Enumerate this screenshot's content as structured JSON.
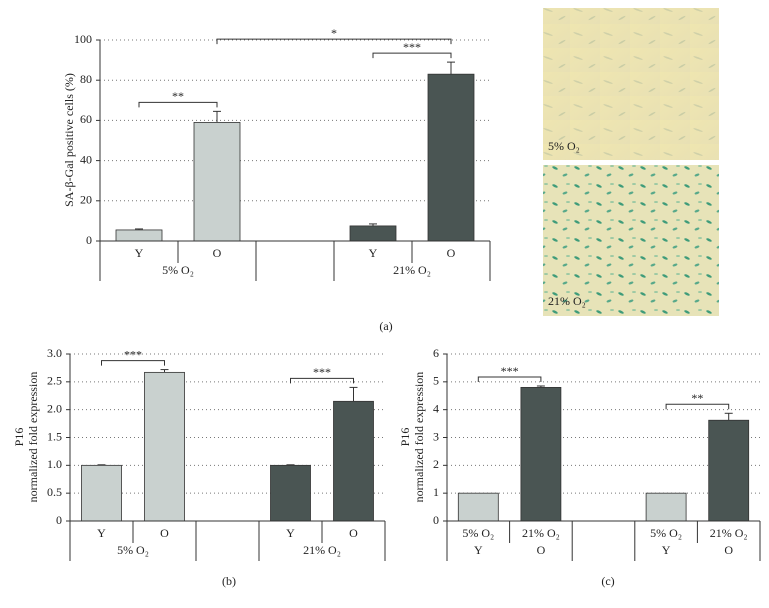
{
  "chart_data": [
    {
      "type": "bar",
      "caption": "(a)",
      "ylabel": [
        "SA-β-Gal positive cells (%)"
      ],
      "categories": [
        "Y",
        "O",
        "Y",
        "O"
      ],
      "groups": [
        "5% O₂",
        "21% O₂"
      ],
      "values": [
        5.5,
        59,
        7.5,
        83
      ],
      "errors": [
        0.5,
        5.5,
        1,
        6
      ],
      "colors": [
        "#c9d1cf",
        "#c9d1cf",
        "#4a5553",
        "#4a5553"
      ],
      "ylim": [
        0,
        100
      ],
      "yticks": [
        0,
        20,
        40,
        60,
        80,
        100
      ],
      "grid": true,
      "annotations": [
        {
          "label": "**",
          "from": 0,
          "to": 1
        },
        {
          "label": "*",
          "from": 1,
          "to": 3
        },
        {
          "label": "***",
          "from": 2,
          "to": 3
        }
      ]
    },
    {
      "type": "bar",
      "caption": "(b)",
      "ylabel": [
        "P16",
        "normalized fold expression"
      ],
      "categories": [
        "Y",
        "O",
        "Y",
        "O"
      ],
      "groups": [
        "5% O₂",
        "21% O₂"
      ],
      "values": [
        1.0,
        2.67,
        1.0,
        2.15
      ],
      "errors": [
        0.01,
        0.05,
        0.01,
        0.25
      ],
      "colors": [
        "#c9d1cf",
        "#c9d1cf",
        "#4a5553",
        "#4a5553"
      ],
      "ylim": [
        0,
        3
      ],
      "yticks": [
        0,
        0.5,
        {
          "value": 1,
          "label": "1.0"
        },
        1.5,
        {
          "value": 2,
          "label": "2.0"
        },
        2.5,
        {
          "value": 3,
          "label": "3.0"
        }
      ],
      "grid": true,
      "annotations": [
        {
          "label": "***",
          "from": 0,
          "to": 1
        },
        {
          "label": "***",
          "from": 2,
          "to": 3
        }
      ]
    },
    {
      "type": "bar",
      "caption": "(c)",
      "ylabel": [
        "P16",
        "normalized fold expression"
      ],
      "categories": [
        "Y",
        "O",
        "Y",
        "O"
      ],
      "conditions": [
        "5% O₂",
        "21% O₂",
        "5% O₂",
        "21% O₂"
      ],
      "values": [
        1,
        4.8,
        1,
        3.62
      ],
      "errors": [
        null,
        0.05,
        null,
        0.25
      ],
      "colors": [
        "#c9d1cf",
        "#4a5553",
        "#c9d1cf",
        "#4a5553"
      ],
      "ylim": [
        0,
        6
      ],
      "yticks": [
        0,
        1,
        2,
        3,
        4,
        5,
        6
      ],
      "grid": true,
      "annotations": [
        {
          "label": "***",
          "from": 0,
          "to": 1
        },
        {
          "label": "**",
          "from": 2,
          "to": 3
        }
      ]
    }
  ],
  "images": [
    {
      "label": "5% O₂"
    },
    {
      "label": "21% O₂"
    }
  ]
}
